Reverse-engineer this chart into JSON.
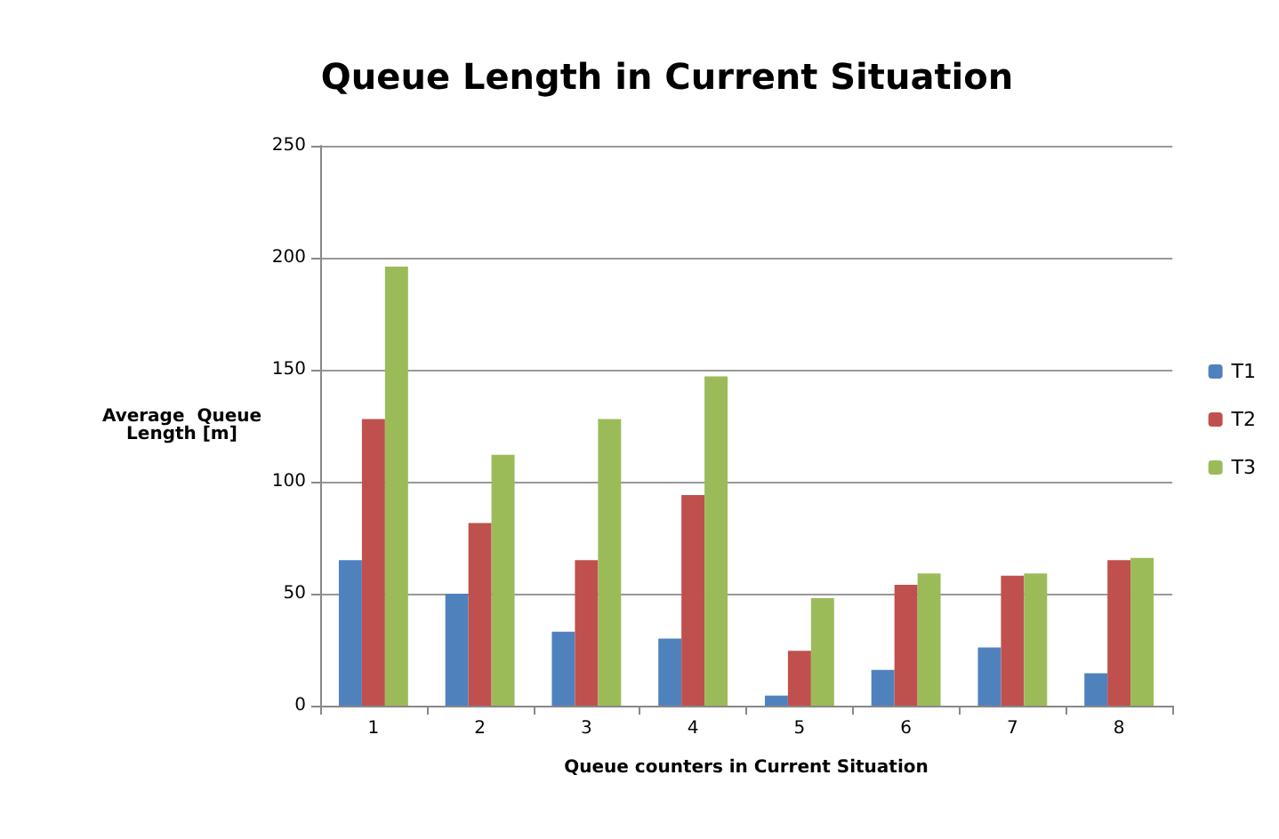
{
  "chart_data": {
    "type": "bar",
    "title": "Queue Length in Current Situation",
    "xlabel": "Queue counters in Current Situation",
    "ylabel": "Average  Queue\nLength [m]",
    "categories": [
      "1",
      "2",
      "3",
      "4",
      "5",
      "6",
      "7",
      "8"
    ],
    "series": [
      {
        "name": "T1",
        "color": "#4f81bd",
        "values": [
          65,
          50,
          33,
          30,
          4.5,
          16,
          26,
          14.5
        ]
      },
      {
        "name": "T2",
        "color": "#c0504d",
        "values": [
          128,
          81.5,
          65,
          94,
          24.5,
          54,
          58,
          65
        ]
      },
      {
        "name": "T3",
        "color": "#9bbb59",
        "values": [
          196,
          112,
          128,
          147,
          48,
          59,
          59,
          66
        ]
      }
    ],
    "ylim": [
      0,
      250
    ],
    "yticks": [
      0,
      50,
      100,
      150,
      200,
      250
    ],
    "grid": "y",
    "legend": "right"
  }
}
